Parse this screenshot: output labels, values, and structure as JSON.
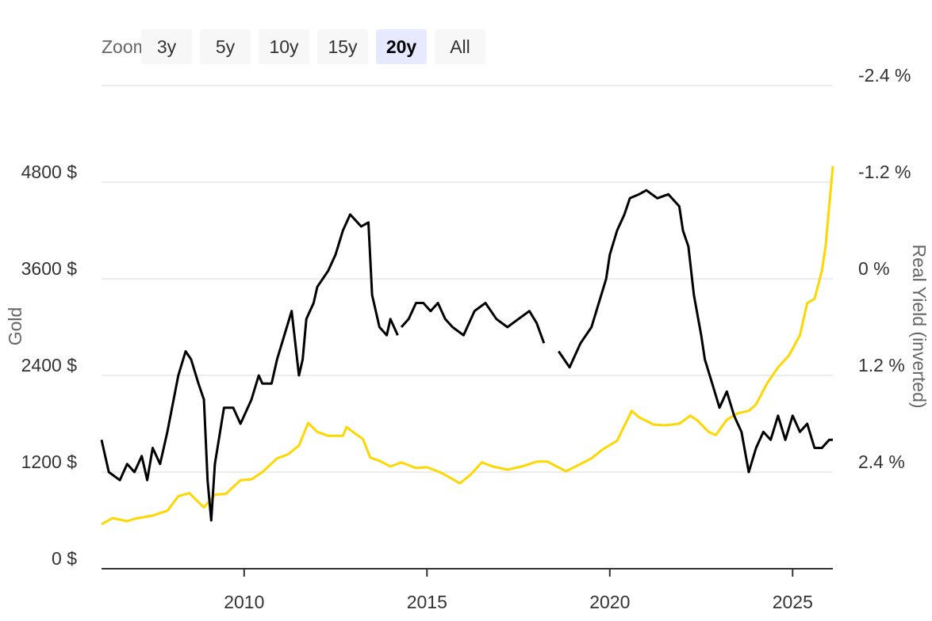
{
  "zoom": {
    "label": "Zoom",
    "buttons": [
      "3y",
      "5y",
      "10y",
      "15y",
      "20y",
      "All"
    ],
    "selected": "20y"
  },
  "chart_data": {
    "type": "line",
    "xlim": [
      2006.1,
      2026.1
    ],
    "x_ticks": [
      2010,
      2015,
      2020,
      2025
    ],
    "x_tick_labels": [
      "2010",
      "2015",
      "2020",
      "2025"
    ],
    "y_left": {
      "label": "Gold",
      "ylim": [
        0,
        4800
      ],
      "ticks": [
        0,
        1200,
        2400,
        3600,
        4800
      ],
      "tick_labels": [
        "0 $",
        "1200 $",
        "2400 $",
        "3600 $",
        "4800 $"
      ]
    },
    "y_right": {
      "label": "Real Yield (inverted)",
      "inverted": true,
      "ticks": [
        -2.4,
        -1.2,
        0,
        1.2,
        2.4
      ],
      "tick_labels": [
        "-2.4 %",
        "-1.2 %",
        "0 %",
        "1.2 %",
        "2.4 %"
      ]
    },
    "grid": true,
    "legend": "none",
    "colors": {
      "gold": "#FFD700",
      "real_yield": "#000000",
      "grid": "#e6e6e6",
      "axis": "#333333"
    },
    "series": [
      {
        "axis": "left",
        "color": "#FFD700",
        "points": [
          [
            2006.1,
            550
          ],
          [
            2006.4,
            630
          ],
          [
            2006.8,
            590
          ],
          [
            2007.0,
            620
          ],
          [
            2007.5,
            660
          ],
          [
            2007.9,
            720
          ],
          [
            2008.2,
            900
          ],
          [
            2008.5,
            940
          ],
          [
            2008.9,
            760
          ],
          [
            2009.2,
            920
          ],
          [
            2009.5,
            930
          ],
          [
            2009.9,
            1100
          ],
          [
            2010.2,
            1110
          ],
          [
            2010.5,
            1200
          ],
          [
            2010.9,
            1370
          ],
          [
            2011.2,
            1420
          ],
          [
            2011.5,
            1530
          ],
          [
            2011.75,
            1810
          ],
          [
            2012.0,
            1700
          ],
          [
            2012.3,
            1650
          ],
          [
            2012.7,
            1650
          ],
          [
            2012.8,
            1760
          ],
          [
            2013.0,
            1690
          ],
          [
            2013.25,
            1610
          ],
          [
            2013.45,
            1380
          ],
          [
            2013.7,
            1340
          ],
          [
            2014.0,
            1270
          ],
          [
            2014.3,
            1320
          ],
          [
            2014.7,
            1250
          ],
          [
            2015.0,
            1260
          ],
          [
            2015.4,
            1190
          ],
          [
            2015.9,
            1060
          ],
          [
            2016.2,
            1170
          ],
          [
            2016.5,
            1320
          ],
          [
            2016.8,
            1270
          ],
          [
            2017.2,
            1230
          ],
          [
            2017.6,
            1270
          ],
          [
            2018.0,
            1330
          ],
          [
            2018.3,
            1330
          ],
          [
            2018.8,
            1210
          ],
          [
            2019.2,
            1300
          ],
          [
            2019.5,
            1370
          ],
          [
            2019.8,
            1480
          ],
          [
            2020.2,
            1590
          ],
          [
            2020.6,
            1960
          ],
          [
            2020.8,
            1880
          ],
          [
            2021.2,
            1790
          ],
          [
            2021.5,
            1780
          ],
          [
            2021.9,
            1800
          ],
          [
            2022.2,
            1900
          ],
          [
            2022.4,
            1840
          ],
          [
            2022.7,
            1700
          ],
          [
            2022.9,
            1660
          ],
          [
            2023.2,
            1850
          ],
          [
            2023.5,
            1930
          ],
          [
            2023.8,
            1960
          ],
          [
            2024.0,
            2040
          ],
          [
            2024.3,
            2300
          ],
          [
            2024.6,
            2500
          ],
          [
            2024.9,
            2650
          ],
          [
            2025.2,
            2900
          ],
          [
            2025.4,
            3300
          ],
          [
            2025.6,
            3350
          ],
          [
            2025.8,
            3700
          ],
          [
            2025.9,
            4000
          ],
          [
            2026.0,
            4500
          ],
          [
            2026.1,
            5000
          ]
        ]
      },
      {
        "axis": "right",
        "color": "#000000",
        "segments": [
          [
            [
              2006.1,
              2.0
            ],
            [
              2006.3,
              2.4
            ],
            [
              2006.6,
              2.5
            ],
            [
              2006.8,
              2.3
            ],
            [
              2007.0,
              2.4
            ],
            [
              2007.2,
              2.2
            ],
            [
              2007.35,
              2.5
            ],
            [
              2007.5,
              2.1
            ],
            [
              2007.7,
              2.3
            ],
            [
              2007.9,
              1.9
            ],
            [
              2008.2,
              1.2
            ],
            [
              2008.4,
              0.9
            ],
            [
              2008.55,
              1.0
            ],
            [
              2008.75,
              1.3
            ],
            [
              2008.9,
              1.5
            ],
            [
              2009.0,
              2.5
            ],
            [
              2009.1,
              3.0
            ],
            [
              2009.2,
              2.3
            ],
            [
              2009.45,
              1.6
            ],
            [
              2009.7,
              1.6
            ],
            [
              2009.9,
              1.8
            ],
            [
              2010.2,
              1.5
            ],
            [
              2010.4,
              1.2
            ],
            [
              2010.5,
              1.3
            ],
            [
              2010.75,
              1.3
            ],
            [
              2010.9,
              1.0
            ],
            [
              2011.1,
              0.7
            ],
            [
              2011.3,
              0.4
            ],
            [
              2011.5,
              1.2
            ],
            [
              2011.6,
              1.0
            ],
            [
              2011.7,
              0.5
            ],
            [
              2011.9,
              0.3
            ],
            [
              2012.0,
              0.1
            ],
            [
              2012.3,
              -0.1
            ],
            [
              2012.5,
              -0.3
            ],
            [
              2012.7,
              -0.6
            ],
            [
              2012.9,
              -0.8
            ],
            [
              2013.2,
              -0.65
            ],
            [
              2013.4,
              -0.7
            ],
            [
              2013.5,
              0.2
            ],
            [
              2013.7,
              0.6
            ],
            [
              2013.9,
              0.7
            ],
            [
              2014.0,
              0.5
            ],
            [
              2014.2,
              0.7
            ]
          ],
          [
            [
              2014.3,
              0.6
            ],
            [
              2014.5,
              0.5
            ],
            [
              2014.7,
              0.3
            ],
            [
              2014.9,
              0.3
            ],
            [
              2015.1,
              0.4
            ],
            [
              2015.3,
              0.3
            ],
            [
              2015.5,
              0.5
            ],
            [
              2015.7,
              0.6
            ],
            [
              2016.0,
              0.7
            ],
            [
              2016.3,
              0.4
            ],
            [
              2016.6,
              0.3
            ],
            [
              2016.9,
              0.5
            ],
            [
              2017.2,
              0.6
            ],
            [
              2017.5,
              0.5
            ],
            [
              2017.8,
              0.4
            ],
            [
              2018.0,
              0.55
            ],
            [
              2018.2,
              0.8
            ]
          ],
          [
            [
              2018.6,
              0.9
            ],
            [
              2018.9,
              1.1
            ],
            [
              2019.2,
              0.8
            ],
            [
              2019.5,
              0.6
            ],
            [
              2019.9,
              0.0
            ],
            [
              2020.0,
              -0.3
            ],
            [
              2020.2,
              -0.6
            ],
            [
              2020.4,
              -0.8
            ],
            [
              2020.55,
              -1.0
            ],
            [
              2020.8,
              -1.05
            ],
            [
              2021.0,
              -1.1
            ],
            [
              2021.3,
              -1.0
            ],
            [
              2021.6,
              -1.05
            ],
            [
              2021.9,
              -0.9
            ],
            [
              2022.0,
              -0.6
            ],
            [
              2022.15,
              -0.4
            ],
            [
              2022.3,
              0.2
            ],
            [
              2022.5,
              0.7
            ],
            [
              2022.6,
              1.0
            ],
            [
              2022.8,
              1.3
            ],
            [
              2023.0,
              1.6
            ],
            [
              2023.2,
              1.4
            ],
            [
              2023.4,
              1.7
            ],
            [
              2023.6,
              1.9
            ],
            [
              2023.8,
              2.4
            ],
            [
              2024.0,
              2.1
            ],
            [
              2024.2,
              1.9
            ],
            [
              2024.4,
              2.0
            ],
            [
              2024.6,
              1.7
            ],
            [
              2024.8,
              2.0
            ],
            [
              2025.0,
              1.7
            ],
            [
              2025.2,
              1.9
            ],
            [
              2025.4,
              1.8
            ],
            [
              2025.6,
              2.1
            ],
            [
              2025.8,
              2.1
            ],
            [
              2026.0,
              2.0
            ],
            [
              2026.1,
              2.0
            ]
          ]
        ]
      }
    ]
  }
}
